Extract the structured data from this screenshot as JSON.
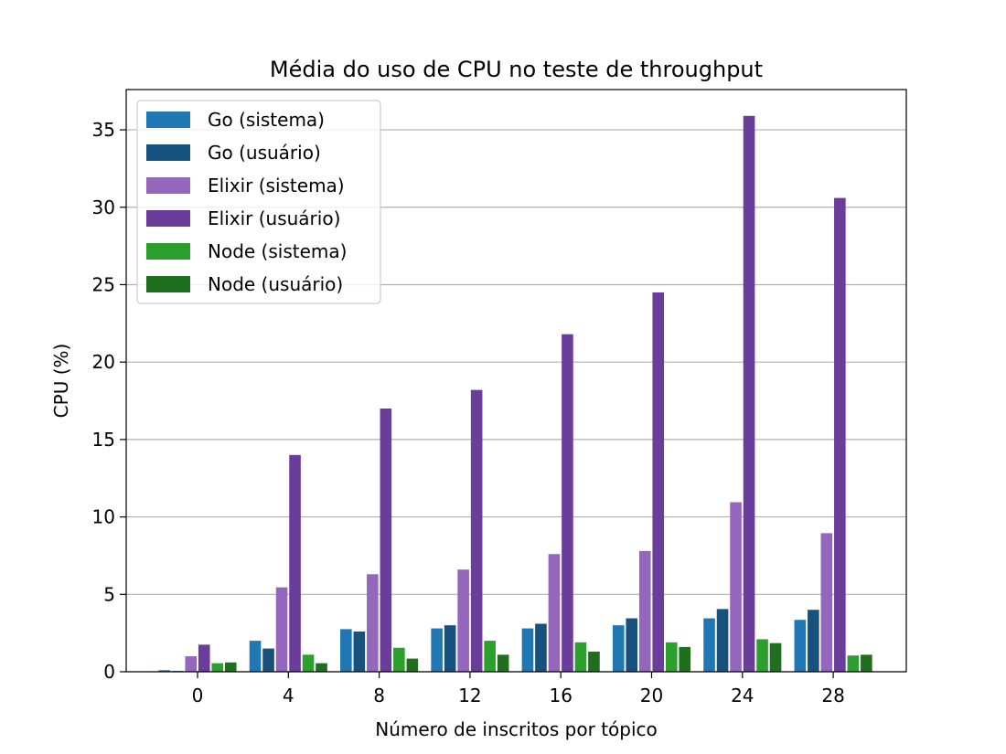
{
  "chart_data": {
    "type": "bar",
    "title": "Média do uso de CPU no teste de throughput",
    "xlabel": "Número de inscritos por tópico",
    "ylabel": "CPU (%)",
    "categories": [
      "0",
      "4",
      "8",
      "12",
      "16",
      "20",
      "24",
      "28"
    ],
    "ylim": [
      0,
      37.6
    ],
    "yticks": [
      0,
      5,
      10,
      15,
      20,
      25,
      30,
      35
    ],
    "grid": "y",
    "legend_position": "top-left",
    "series": [
      {
        "name": "Go (sistema)",
        "color": "#1f77b4",
        "values": [
          0.1,
          2.0,
          2.75,
          2.8,
          2.8,
          3.0,
          3.45,
          3.35
        ]
      },
      {
        "name": "Go (usuário)",
        "color": "#17517e",
        "values": [
          0.05,
          1.5,
          2.6,
          3.0,
          3.1,
          3.45,
          4.05,
          4.0
        ]
      },
      {
        "name": "Elixir (sistema)",
        "color": "#9467bd",
        "values": [
          1.0,
          5.45,
          6.3,
          6.6,
          7.6,
          7.8,
          10.95,
          8.95
        ]
      },
      {
        "name": "Elixir (usuário)",
        "color": "#6a3d9a",
        "values": [
          1.75,
          14.0,
          17.0,
          18.2,
          21.8,
          24.5,
          35.9,
          30.6
        ]
      },
      {
        "name": "Node (sistema)",
        "color": "#2ca02c",
        "values": [
          0.55,
          1.1,
          1.55,
          2.0,
          1.9,
          1.9,
          2.1,
          1.05
        ]
      },
      {
        "name": "Node (usuário)",
        "color": "#1f6f1f",
        "values": [
          0.6,
          0.55,
          0.85,
          1.1,
          1.3,
          1.6,
          1.85,
          1.1
        ]
      }
    ]
  }
}
